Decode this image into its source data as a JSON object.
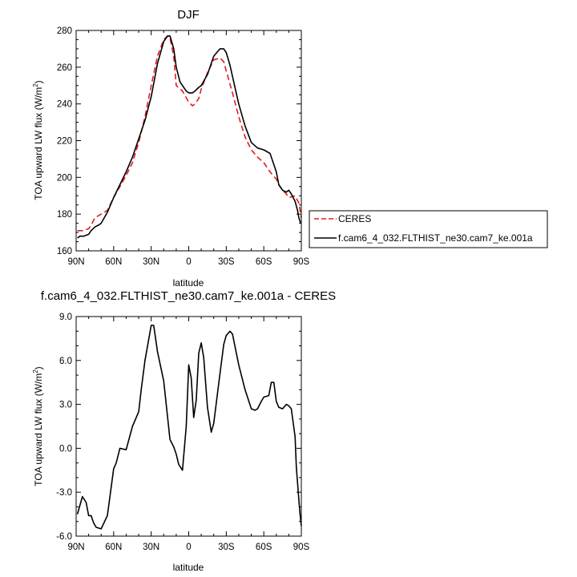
{
  "chart_data": [
    {
      "type": "line",
      "title": "DJF",
      "xlabel": "latitude",
      "ylabel": "TOA upward LW flux (W/m²)",
      "ylabel_parts": {
        "main": "TOA upward LW flux (W/m",
        "sup": "2",
        "end": ")"
      },
      "xlim": [
        90,
        -90
      ],
      "ylim": [
        160,
        280
      ],
      "xticks": [
        {
          "value": 90,
          "label": "90N"
        },
        {
          "value": 60,
          "label": "60N"
        },
        {
          "value": 30,
          "label": "30N"
        },
        {
          "value": 0,
          "label": "0"
        },
        {
          "value": -30,
          "label": "30S"
        },
        {
          "value": -60,
          "label": "60S"
        },
        {
          "value": -90,
          "label": "90S"
        }
      ],
      "yticks": [
        {
          "value": 160,
          "label": "160"
        },
        {
          "value": 180,
          "label": "180"
        },
        {
          "value": 200,
          "label": "200"
        },
        {
          "value": 220,
          "label": "220"
        },
        {
          "value": 240,
          "label": "240"
        },
        {
          "value": 260,
          "label": "260"
        },
        {
          "value": 280,
          "label": "280"
        }
      ],
      "legend": {
        "placement": "right",
        "entries": [
          "CERES",
          "f.cam6_4_032.FLTHIST_ne30.cam7_ke.001a"
        ]
      },
      "series": [
        {
          "name": "CERES",
          "color": "#e41a1c",
          "dash": "dashed",
          "x": [
            89,
            85,
            80,
            78,
            75,
            70,
            65,
            60,
            55,
            50,
            45,
            40,
            35,
            30,
            25,
            20,
            17,
            15,
            12,
            10,
            5,
            0,
            -3,
            -5,
            -8,
            -10,
            -15,
            -20,
            -25,
            -28,
            -30,
            -35,
            -40,
            -45,
            -50,
            -55,
            -60,
            -65,
            -70,
            -72,
            -75,
            -78,
            -80,
            -85,
            -88,
            -90
          ],
          "y": [
            171,
            171,
            172,
            174,
            178,
            180,
            182,
            189,
            195,
            201,
            208,
            219,
            233,
            250,
            266,
            275,
            277,
            276,
            266,
            250,
            247,
            241,
            239,
            240,
            243,
            248,
            257,
            264,
            265,
            263,
            258,
            246,
            233,
            222,
            215,
            211,
            208,
            203,
            199,
            196,
            193,
            191,
            189,
            190,
            186,
            178
          ]
        },
        {
          "name": "f.cam6_4_032.FLTHIST_ne30.cam7_ke.001a",
          "color": "#000000",
          "dash": "solid",
          "x": [
            89,
            87,
            84,
            80,
            78,
            75,
            72,
            70,
            65,
            60,
            55,
            50,
            45,
            40,
            35,
            30,
            25,
            20,
            17,
            15,
            12,
            10,
            7,
            5,
            2,
            0,
            -3,
            -5,
            -8,
            -10,
            -15,
            -20,
            -25,
            -28,
            -30,
            -33,
            -35,
            -40,
            -45,
            -50,
            -55,
            -60,
            -65,
            -70,
            -72,
            -75,
            -78,
            -80,
            -82,
            -85,
            -87,
            -88,
            -89,
            -90
          ],
          "y": [
            167,
            168,
            168,
            169,
            171,
            173,
            174,
            175,
            181,
            189,
            196,
            203,
            211,
            221,
            231,
            244,
            262,
            274,
            277,
            277,
            270,
            260,
            252,
            250,
            247,
            246,
            246,
            247,
            249,
            250,
            256,
            266,
            270,
            270,
            268,
            261,
            255,
            240,
            228,
            219,
            216,
            215,
            213,
            203,
            196,
            193,
            192,
            193,
            191,
            187,
            182,
            178,
            176,
            175
          ]
        }
      ]
    },
    {
      "type": "line",
      "title": "f.cam6_4_032.FLTHIST_ne30.cam7_ke.001a - CERES",
      "xlabel": "latitude",
      "ylabel": "TOA upward LW flux (W/m²)",
      "ylabel_parts": {
        "main": "TOA upward LW flux (W/m",
        "sup": "2",
        "end": ")"
      },
      "xlim": [
        90,
        -90
      ],
      "ylim": [
        -6,
        9
      ],
      "xticks": [
        {
          "value": 90,
          "label": "90N"
        },
        {
          "value": 60,
          "label": "60N"
        },
        {
          "value": 30,
          "label": "30N"
        },
        {
          "value": 0,
          "label": "0"
        },
        {
          "value": -30,
          "label": "30S"
        },
        {
          "value": -60,
          "label": "60S"
        },
        {
          "value": -90,
          "label": "90S"
        }
      ],
      "yticks": [
        {
          "value": -6,
          "label": "-6.0"
        },
        {
          "value": -3,
          "label": "-3.0"
        },
        {
          "value": 0,
          "label": "0.0"
        },
        {
          "value": 3,
          "label": "3.0"
        },
        {
          "value": 6,
          "label": "6.0"
        },
        {
          "value": 9,
          "label": "9.0"
        }
      ],
      "series": [
        {
          "name": "",
          "color": "#000000",
          "dash": "solid",
          "x": [
            89,
            87,
            85,
            82,
            80,
            78,
            76,
            74,
            70,
            65,
            60,
            58,
            55,
            50,
            45,
            40,
            38,
            35,
            30,
            28,
            25,
            20,
            15,
            12,
            10,
            8,
            5,
            2,
            0,
            -2,
            -4,
            -6,
            -8,
            -10,
            -12,
            -15,
            -18,
            -20,
            -25,
            -28,
            -30,
            -33,
            -35,
            -40,
            -45,
            -50,
            -53,
            -55,
            -58,
            -60,
            -64,
            -66,
            -68,
            -70,
            -72,
            -75,
            -78,
            -80,
            -82,
            -85,
            -86,
            -88,
            -89,
            -90
          ],
          "y": [
            -4.5,
            -3.9,
            -3.3,
            -3.7,
            -4.6,
            -4.6,
            -5.1,
            -5.4,
            -5.5,
            -4.6,
            -1.4,
            -1.0,
            0.0,
            -0.1,
            1.5,
            2.5,
            4.0,
            6.0,
            8.4,
            8.4,
            6.6,
            4.6,
            0.6,
            0.1,
            -0.4,
            -1.1,
            -1.5,
            1.5,
            5.7,
            4.8,
            2.1,
            3.3,
            6.5,
            7.2,
            6.2,
            2.8,
            1.1,
            1.7,
            5.1,
            7.1,
            7.7,
            8.0,
            7.8,
            5.7,
            4.0,
            2.7,
            2.6,
            2.7,
            3.2,
            3.5,
            3.6,
            4.5,
            4.5,
            3.2,
            2.8,
            2.7,
            3.0,
            2.9,
            2.7,
            0.8,
            -1.3,
            -3.5,
            -4.5,
            -5.3
          ]
        }
      ]
    }
  ]
}
